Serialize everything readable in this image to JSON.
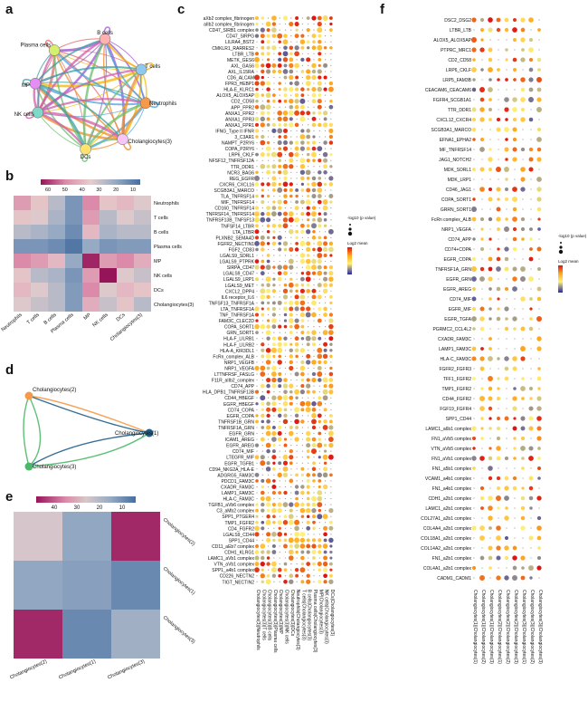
{
  "panels": {
    "a": "a",
    "b": "b",
    "c": "c",
    "d": "d",
    "e": "e",
    "f": "f"
  },
  "panel_a": {
    "nodes": [
      {
        "name": "Plasma cells",
        "color": "#d4f06e"
      },
      {
        "name": "B cells",
        "color": "#ffb0b0"
      },
      {
        "name": "T cells",
        "color": "#8fc9f0"
      },
      {
        "name": "Neutrophils",
        "color": "#f59a4a"
      },
      {
        "name": "Cholangiocytes(3)",
        "color": "#f7c6f7"
      },
      {
        "name": "DCs",
        "color": "#ffe36e"
      },
      {
        "name": "NK cells",
        "color": "#7fd8c8"
      },
      {
        "name": "MP",
        "color": "#e58cf5"
      }
    ]
  },
  "panel_b": {
    "chart_data": {
      "type": "heatmap",
      "colorbar_ticks": [
        "60",
        "50",
        "40",
        "30",
        "20",
        "10"
      ],
      "rows": [
        "Neutrophils",
        "T cells",
        "B cells",
        "Plasma cells",
        "MP",
        "NK cells",
        "DCs",
        "Cholangiocytes(3)"
      ],
      "cols": [
        "Neutrophils",
        "T cells",
        "B cells",
        "Plasma cells",
        "MP",
        "NK cells",
        "DCs",
        "Cholangiocytes(3)"
      ],
      "values": [
        [
          45,
          38,
          30,
          18,
          48,
          38,
          40,
          35
        ],
        [
          38,
          35,
          28,
          18,
          45,
          30,
          35,
          32
        ],
        [
          30,
          28,
          25,
          15,
          40,
          28,
          30,
          30
        ],
        [
          18,
          18,
          15,
          8,
          25,
          18,
          20,
          20
        ],
        [
          48,
          45,
          40,
          25,
          60,
          45,
          48,
          42
        ],
        [
          38,
          30,
          28,
          18,
          45,
          62,
          35,
          32
        ],
        [
          40,
          35,
          30,
          20,
          48,
          35,
          40,
          38
        ],
        [
          35,
          32,
          30,
          20,
          42,
          32,
          38,
          30
        ]
      ]
    }
  },
  "panel_c": {
    "legend_pval": "-log10 (p value)",
    "legend_mean": "Log2 mean",
    "rows": [
      "aXb2 complex_fibrinogen",
      "aIIb2 complex_fibrinogen",
      "CD47_SIRB1 complex",
      "CD47_SIRPG",
      "LILRA4_BST2",
      "CMKLR1_RARRES2",
      "LTBR_LTB",
      "METK_GES6",
      "AXL_GAS6",
      "AXL_IL15RA",
      "CD6_ALCAM",
      "FPR3_HEBP1",
      "HLA-E_KLRC1",
      "ALOX5_ALOX5AP",
      "CD2_CD58",
      "APP_FPR2",
      "ANXA1_FPR2",
      "ANXA1_FPR3",
      "ANXA1_FPR1",
      "IFNG_Type II IFNR",
      "3_C3AR1",
      "NAMPT_P2RY6",
      "COPA_P2RY6",
      "LRP6_CKLF",
      "NFSF12_TNFRSF12A",
      "TTR_DDR1",
      "NCR3_BAG6",
      "REG_EGFR",
      "CXCR6_CXCL16",
      "SCGB3A1_MARCO",
      "TLA_TNFRSF14",
      "MIF_TNFRSF14",
      "CD160_TNFRSF14",
      "TNFRSF14_TNFRSF14",
      "TNFRSF13B_TNFSF13",
      "TNFSF14_LTBR",
      "LTA_LTBR",
      "PLXNB2_SEMA4D",
      "FGFR2_NECTIN1",
      "FGF2_CD83",
      "LGALS9_SDRL1",
      "LGALS9_PTPRK",
      "SIRPA_CD47",
      "LGALS9_CD47",
      "LGALS9_LRP1",
      "LGALS9_MET",
      "CXCL2_DPP4",
      "IL6 receptor_IL6",
      "TNFSF13_TNFRSF1A",
      "LTA_TNFRSF1A",
      "TNF_TNFRSF1A",
      "FAM3C_CLEC2D",
      "COPA_SORT1",
      "GRN_SORT1",
      "HLA-F_LILRB1",
      "HLA-F_LILRB2",
      "HLA-A_KIR3DL1",
      "FcRn_complex_ALB",
      "NRP1_VEGFB",
      "NRP1_VEGFA",
      "LTTNFRSF_FASLG",
      "F11R_aIIb2_complex",
      "CD74_APP",
      "HLA_DPB1_TNFRSF13B",
      "CD44_HBEGF",
      "EGFR_HBEGF",
      "CD74_COPA",
      "EGFR_COPA",
      "TNFRSF1B_GRN",
      "TNFRSF1A_GRN",
      "EGFR_GRN",
      "ICAM1_AREG",
      "EGFR_AREG",
      "CD74_MIF",
      "LTEGFR_MIF",
      "EGFR_TGFB1",
      "CD94_NKG2A_HLA-E",
      "ADGRG5_FAM3C",
      "PDCD1_FAM3C",
      "CXADR_FAM3C",
      "LAMP1_FAM3C",
      "HLA-C_FAM3C",
      "TGFB1_aVb6 complex",
      "C3_aMb2 complex",
      "SPP1_PTGER4",
      "TMP1_FGFR2",
      "CD4_FGFR2",
      "LGALS9_CD44",
      "SPP1_CD44",
      "CD11_aEb7 complex",
      "CDH1_KLRG1",
      "LAMC1_aVb1 complex",
      "VTN_aVb1 complex",
      "SPP1_a4b1 complex",
      "CD226_NECTN2",
      "TIGT_NECTIN2"
    ],
    "cols": [
      "Cholangiocytes(3)|Neutrophils",
      "Cholangiocytes(3)|T cells",
      "Cholangiocytes(3)|B cells",
      "Cholangiocytes(3)|Plasma cells",
      "Cholangiocytes(3)|MP",
      "Cholangiocytes(3)|NK cells",
      "Cholangiocytes(3)|DCs",
      "Neutrophils|Cholangiocytes(3)",
      "T cells|Cholangiocytes(3)",
      "B cells|Cholangiocytes(3)",
      "Plasma cells|Cholangiocytes(3)",
      "MP|Cholangiocytes(3)",
      "NK cells|Cholangiocytes(3)",
      "DCs|Cholangiocytes(3)"
    ]
  },
  "panel_d": {
    "nodes": [
      {
        "name": "Cholangiocytes(2)",
        "color": "#f59a4a"
      },
      {
        "name": "Cholangiocytes(1)",
        "color": "#1f5f8b"
      },
      {
        "name": "Cholangiocytes(3)",
        "color": "#4cb86a"
      }
    ]
  },
  "panel_e": {
    "chart_data": {
      "type": "heatmap",
      "colorbar_ticks": [
        "40",
        "30",
        "20",
        "10"
      ],
      "rows": [
        "Cholangiocytes(2)",
        "Cholangiocytes(1)",
        "Cholangiocytes(3)"
      ],
      "cols": [
        "Cholangiocytes(2)",
        "Cholangiocytes(1)",
        "Cholangiocytes(3)"
      ],
      "values": [
        [
          28,
          20,
          48
        ],
        [
          20,
          18,
          12
        ],
        [
          48,
          12,
          22
        ]
      ]
    }
  },
  "panel_f": {
    "legend_pval": "-log10 (p value)",
    "legend_mean": "Log2 mean",
    "rows": [
      "DSC2_DSG2",
      "LTBR_LTB",
      "ALOX5_ALOX5AP",
      "PTPRC_MRC1",
      "CD2_CD58",
      "LRP6_CKLF",
      "LRP5_FAM3B",
      "CEACAM6_CEACAM6",
      "FGFR4_SCGB1A1",
      "TTR_DDR1",
      "CXCL12_CXCR4",
      "SCGB3A1_MARCO",
      "EFNA1_EPHA2",
      "MF_TNFRSF14",
      "JAG1_NOTCH2",
      "MDK_SORL1",
      "MDK_LRP1",
      "CD46_JAG1",
      "COPA_SORT1",
      "GRRN_SORT1",
      "FcRn complex_ALB",
      "NRP1_VEGFA",
      "CD74_APP",
      "CD74+COPA",
      "EGFR_COPA",
      "TNFRSF1A_GRN",
      "EGFR_GRN",
      "EGFR_AREG",
      "CD74_MIF",
      "EGFR_MIF",
      "EGFR_TGFA",
      "PGRMC2_CCL4L2",
      "CXADR_FAM3C",
      "LAMP1_FAM3C",
      "HLA-C_FAM3C",
      "FGFR2_FGFR3",
      "TFF1_FGFR2",
      "TMP1_FGFR2",
      "CD44_FGFR2",
      "FGF19_FGFR4",
      "SPP1_CD44",
      "LAMC1_a6b1 complex",
      "FN1_aVb5 complex",
      "VTN_aVb5 complex",
      "FN1_aVb1 complex",
      "FN1_a5b1 complex",
      "VCAM1_a4b1 complex",
      "FN1_a4b1 complex",
      "CDH1_a2b1 complex",
      "LAMC1_a2b1 complex",
      "COL27A1_a2b1 complex",
      "COL4A4_a2b1 complex",
      "COL18A1_a2b1 complex",
      "COL14A2_a2b1 complex",
      "FN1_a2b1 complex",
      "COL4A1_a2b1 complex",
      "CADM1_CADM1"
    ],
    "cols": [
      "Cholangiocytes(1)|Cholangiocytes(1)",
      "Cholangiocytes(1)|Cholangiocytes(2)",
      "Cholangiocytes(1)|Cholangiocytes(3)",
      "Cholangiocytes(2)|Cholangiocytes(1)",
      "Cholangiocytes(2)|Cholangiocytes(2)",
      "Cholangiocytes(2)|Cholangiocytes(3)",
      "Cholangiocytes(3)|Cholangiocytes(1)",
      "Cholangiocytes(3)|Cholangiocytes(2)",
      "Cholangiocytes(3)|Cholangiocytes(3)"
    ]
  }
}
